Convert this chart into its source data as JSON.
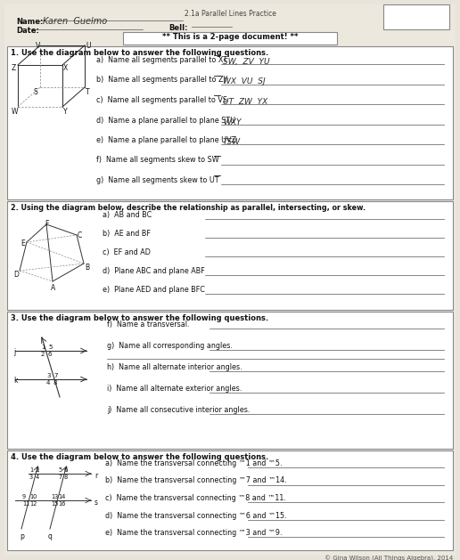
{
  "title": "2.1a Parallel Lines Practice",
  "bg_color": "#e8e4db",
  "page_bg": "#ddd8ce",
  "white": "#ffffff",
  "dark": "#222222",
  "gray": "#666666",
  "section1_title": "1. Use the diagram below to answer the following questions.",
  "section2_title": "2. Using the diagram below, describe the relationship as parallel, intersecting, or skew.",
  "section3_title": "3. Use the diagram below to answer the following questions.",
  "section4_title": "4. Use the diagram below to answer the following questions.",
  "copyright": "© Gina Wilson (All Things Algebra), 2014",
  "two_page": "** This is a 2-page document! **",
  "s1_qs": [
    "a)  Name all segments parallel to XT",
    "b)  Name all segments parallel to ZY",
    "c)  Name all segments parallel to VS",
    "d)  Name a plane parallel to plane STU",
    "e)  Name a plane parallel to plane UVZ",
    "f)  Name all segments skew to SW",
    "g)  Name all segments skew to UT"
  ],
  "s1_ans": [
    "SW,  ZV  YU",
    "WX  VU  SJ",
    "UT  ZW  YX",
    "WXY",
    "TSW",
    "",
    ""
  ],
  "s2_qs": [
    "a)  AB and BC",
    "b)  AE and BF",
    "c)  EF and AD",
    "d)  Plane ABC and plane ABF",
    "e)  Plane AED and plane BFC"
  ],
  "s3_qs": [
    "f)  Name a transversal.",
    "g)  Name all corresponding angles.",
    "h)  Name all alternate interior angles.",
    "i)  Name all alternate exterior angles.",
    "j)  Name all consecutive interior angles."
  ],
  "s4_qs": [
    "a)  Name the transversal connecting ™1 and ™5.",
    "b)  Name the transversal connecting ™7 and ™14.",
    "c)  Name the transversal connecting ™8 and ™11.",
    "d)  Name the transversal connecting ™6 and ™15.",
    "e)  Name the transversal connecting ™3 and ™9."
  ]
}
